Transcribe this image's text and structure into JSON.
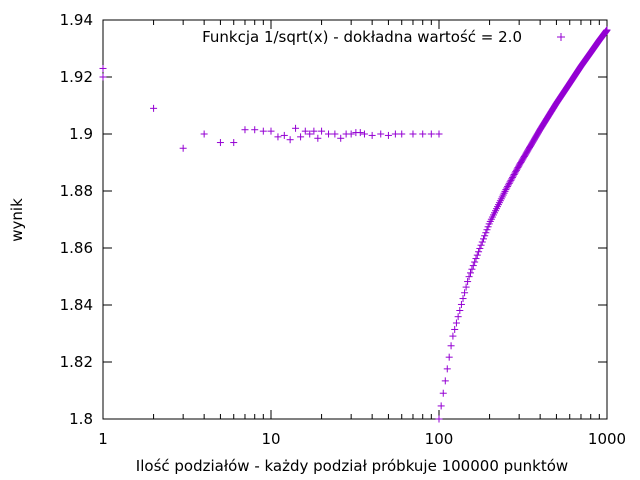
{
  "chart_data": {
    "type": "scatter",
    "xlabel": "Ilość podziałów - każdy podział próbkuje 100000 punktów",
    "ylabel": "wynik",
    "xscale": "log",
    "xlim": [
      1,
      1000
    ],
    "ylim": [
      1.8,
      1.94
    ],
    "grid": false,
    "legend_position": "top-right",
    "series": [
      {
        "name": "Funkcja 1/sqrt(x) - dokładna wartość = 2.0",
        "color": "#9400d3",
        "marker": "plus",
        "description": "Result for n = 1..100 subdivisions, each sampling 100000 points",
        "points": [
          [
            1,
            1.923
          ],
          [
            1,
            1.92
          ],
          [
            2,
            1.909
          ],
          [
            3,
            1.895
          ],
          [
            4,
            1.9
          ],
          [
            5,
            1.897
          ],
          [
            6,
            1.897
          ],
          [
            7,
            1.9015
          ],
          [
            8,
            1.9015
          ],
          [
            9,
            1.901
          ],
          [
            10,
            1.901
          ],
          [
            11,
            1.899
          ],
          [
            12,
            1.8995
          ],
          [
            13,
            1.898
          ],
          [
            14,
            1.902
          ],
          [
            15,
            1.899
          ],
          [
            16,
            1.901
          ],
          [
            17,
            1.9
          ],
          [
            18,
            1.901
          ],
          [
            19,
            1.8985
          ],
          [
            20,
            1.901
          ],
          [
            22,
            1.9
          ],
          [
            24,
            1.9
          ],
          [
            26,
            1.8985
          ],
          [
            28,
            1.9
          ],
          [
            30,
            1.9
          ],
          [
            32,
            1.9005
          ],
          [
            34,
            1.9005
          ],
          [
            36,
            1.9
          ],
          [
            40,
            1.8995
          ],
          [
            45,
            1.9
          ],
          [
            50,
            1.8995
          ],
          [
            55,
            1.9
          ],
          [
            60,
            1.9
          ],
          [
            70,
            1.9
          ],
          [
            80,
            1.9
          ],
          [
            90,
            1.9
          ],
          [
            100,
            1.9
          ]
        ]
      },
      {
        "name": "",
        "color": "#9400d3",
        "marker": "plus",
        "description": "Dense rising curve for n = 100..1000",
        "curve_samples": [
          [
            100,
            1.8
          ],
          [
            120,
            1.8283
          ],
          [
            150,
            1.8495
          ],
          [
            200,
            1.8688
          ],
          [
            250,
            1.8805
          ],
          [
            300,
            1.889
          ],
          [
            400,
            1.9016
          ],
          [
            500,
            1.9108
          ],
          [
            600,
            1.9178
          ],
          [
            700,
            1.9238
          ],
          [
            800,
            1.9286
          ],
          [
            900,
            1.9329
          ],
          [
            1000,
            1.9365
          ]
        ]
      }
    ],
    "x_ticks": [
      {
        "value": 1,
        "label": "1"
      },
      {
        "value": 10,
        "label": "10"
      },
      {
        "value": 100,
        "label": "100"
      },
      {
        "value": 1000,
        "label": "1000"
      }
    ],
    "y_ticks": [
      {
        "value": 1.8,
        "label": "1.8"
      },
      {
        "value": 1.82,
        "label": "1.82"
      },
      {
        "value": 1.84,
        "label": "1.84"
      },
      {
        "value": 1.86,
        "label": "1.86"
      },
      {
        "value": 1.88,
        "label": "1.88"
      },
      {
        "value": 1.9,
        "label": "1.9"
      },
      {
        "value": 1.92,
        "label": "1.92"
      },
      {
        "value": 1.94,
        "label": "1.94"
      }
    ]
  }
}
